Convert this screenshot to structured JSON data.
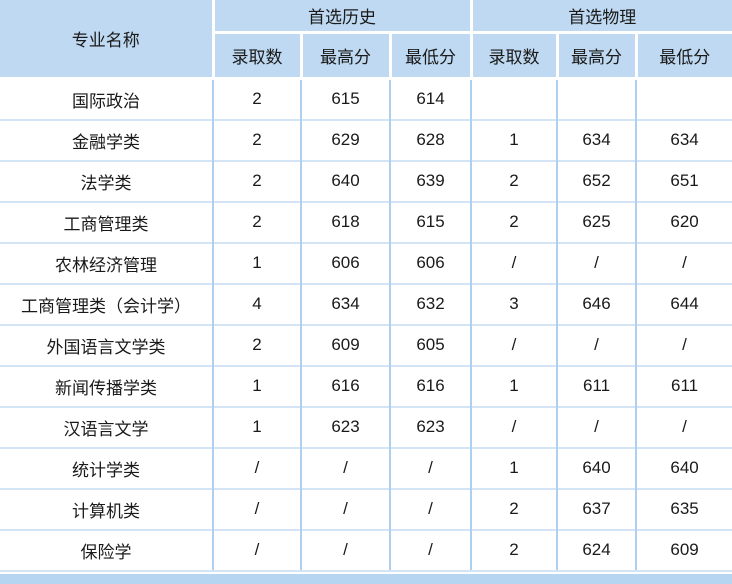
{
  "chart_data": {
    "type": "table",
    "header": {
      "major_col": "专业名称",
      "groups": [
        {
          "label": "首选历史",
          "subcolumns": [
            "录取数",
            "最高分",
            "最低分"
          ]
        },
        {
          "label": "首选物理",
          "subcolumns": [
            "录取数",
            "最高分",
            "最低分"
          ]
        }
      ]
    },
    "rows": [
      [
        "国际政治",
        "2",
        "615",
        "614",
        "",
        "",
        ""
      ],
      [
        "金融学类",
        "2",
        "629",
        "628",
        "1",
        "634",
        "634"
      ],
      [
        "法学类",
        "2",
        "640",
        "639",
        "2",
        "652",
        "651"
      ],
      [
        "工商管理类",
        "2",
        "618",
        "615",
        "2",
        "625",
        "620"
      ],
      [
        "农林经济管理",
        "1",
        "606",
        "606",
        "/",
        "/",
        "/"
      ],
      [
        "工商管理类（会计学）",
        "4",
        "634",
        "632",
        "3",
        "646",
        "644"
      ],
      [
        "外国语言文学类",
        "2",
        "609",
        "605",
        "/",
        "/",
        "/"
      ],
      [
        "新闻传播学类",
        "1",
        "616",
        "616",
        "1",
        "611",
        "611"
      ],
      [
        "汉语言文学",
        "1",
        "623",
        "623",
        "/",
        "/",
        "/"
      ],
      [
        "统计学类",
        "/",
        "/",
        "/",
        "1",
        "640",
        "640"
      ],
      [
        "计算机类",
        "/",
        "/",
        "/",
        "2",
        "637",
        "635"
      ],
      [
        "保险学",
        "/",
        "/",
        "/",
        "2",
        "624",
        "609"
      ]
    ]
  },
  "colors": {
    "header_bg": "#bed9f1",
    "header_grid": "#ffffff",
    "body_vline": "#aed0ee",
    "body_hline": "#d3e5f5",
    "bottom_strip": "#b5d5f0",
    "text": "#1a1a1a"
  }
}
